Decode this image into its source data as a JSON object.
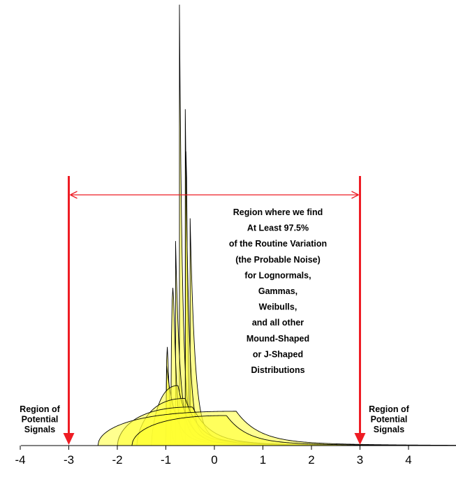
{
  "chart_data": {
    "type": "area",
    "title": "",
    "xlabel": "",
    "ylabel": "",
    "xlim": [
      -4,
      5
    ],
    "ylim": [
      0,
      1
    ],
    "x_ticks": [
      "-4",
      "-3",
      "-2",
      "-1",
      "0",
      "1",
      "2",
      "3",
      "4"
    ],
    "fill_color": "#ffff33",
    "arrow_color": "#ee1c24",
    "limits": [
      -3,
      3
    ],
    "series": [
      {
        "type": "lognormal",
        "shift": -0.5,
        "peak_x": -0.5,
        "peak_y": 0.5,
        "sigma": 0.1,
        "values": [
          [
            -0.5,
            0
          ],
          [
            -0.5,
            0.5
          ],
          [
            0,
            0.025
          ],
          [
            1,
            0.004
          ],
          [
            2,
            0.001
          ],
          [
            3,
            0
          ]
        ]
      },
      {
        "type": "lognormal",
        "shift": -0.6,
        "peak_x": -0.58,
        "peak_y": 0.72,
        "sigma": 0.08,
        "values": [
          [
            -0.6,
            0
          ],
          [
            -0.58,
            0.72
          ],
          [
            0,
            0.02
          ],
          [
            1,
            0.003
          ],
          [
            3,
            0
          ]
        ]
      },
      {
        "type": "j-shaped",
        "shift": -0.72,
        "peak_x": -0.72,
        "peak_y": 0.97,
        "sigma": 0.06,
        "values": [
          [
            -0.72,
            0.97
          ],
          [
            0,
            0.02
          ],
          [
            1,
            0.003
          ],
          [
            3,
            0
          ]
        ]
      },
      {
        "type": "j-shaped",
        "shift": -0.6,
        "peak_x": -0.6,
        "peak_y": 0.74,
        "sigma": 0.07,
        "values": [
          [
            -0.6,
            0.74
          ],
          [
            0,
            0.02
          ],
          [
            2,
            0.001
          ]
        ]
      },
      {
        "type": "weibull",
        "shift": -0.8,
        "peak_x": -0.8,
        "peak_y": 0.45,
        "sigma": 0.09,
        "values": [
          [
            -0.8,
            0.45
          ],
          [
            0,
            0.03
          ],
          [
            2,
            0.001
          ]
        ]
      },
      {
        "type": "gamma",
        "shift": -0.9,
        "peak_x": -0.85,
        "peak_y": 0.37,
        "sigma": 0.12,
        "values": [
          [
            -0.9,
            0
          ],
          [
            -0.85,
            0.37
          ],
          [
            0,
            0.05
          ],
          [
            2,
            0.001
          ]
        ]
      },
      {
        "type": "weibull",
        "shift": -1.0,
        "peak_x": -0.97,
        "peak_y": 0.23,
        "sigma": 0.14,
        "values": [
          [
            -1.0,
            0
          ],
          [
            -0.97,
            0.23
          ],
          [
            0,
            0.06
          ],
          [
            2,
            0.002
          ]
        ]
      },
      {
        "type": "j-shaped",
        "shift": -1.0,
        "peak_x": -0.99,
        "peak_y": 0.18,
        "sigma": 0.18,
        "values": [
          [
            -1.0,
            0.18
          ],
          [
            0,
            0.06
          ],
          [
            2,
            0.003
          ]
        ]
      },
      {
        "type": "gamma",
        "shift": -1.3,
        "peak_x": -0.75,
        "peak_y": 0.14,
        "sigma": 0.22,
        "values": [
          [
            -1.3,
            0
          ],
          [
            -0.75,
            0.14
          ],
          [
            0,
            0.07
          ],
          [
            2,
            0.004
          ]
        ]
      },
      {
        "type": "lognormal",
        "shift": -1.6,
        "peak_x": -0.6,
        "peak_y": 0.11,
        "sigma": 0.28,
        "values": [
          [
            -1.6,
            0
          ],
          [
            -0.6,
            0.11
          ],
          [
            0,
            0.08
          ],
          [
            2,
            0.005
          ]
        ]
      },
      {
        "type": "gamma",
        "shift": -2.0,
        "peak_x": -0.45,
        "peak_y": 0.09,
        "sigma": 0.35,
        "values": [
          [
            -2.0,
            0
          ],
          [
            -0.45,
            0.09
          ],
          [
            1,
            0.03
          ],
          [
            3,
            0.002
          ]
        ]
      },
      {
        "type": "weibull",
        "shift": -2.4,
        "peak_x": 0.45,
        "peak_y": 0.08,
        "sigma": 0.45,
        "values": [
          [
            -2.4,
            0
          ],
          [
            0.45,
            0.08
          ],
          [
            1.5,
            0.04
          ],
          [
            3,
            0.003
          ]
        ]
      },
      {
        "type": "weibull",
        "shift": -1.7,
        "peak_x": 0.25,
        "peak_y": 0.07,
        "sigma": 0.4,
        "values": [
          [
            -1.7,
            0
          ],
          [
            0.25,
            0.07
          ],
          [
            2,
            0.01
          ],
          [
            3,
            0.002
          ]
        ]
      }
    ]
  },
  "annotation": {
    "lines": [
      "Region where we find",
      "At Least 97.5%",
      "of the Routine Variation",
      "(the Probable Noise)",
      "for Lognormals,",
      "Gammas,",
      "Weibulls,",
      "and all other",
      "Mound-Shaped",
      "or J-Shaped",
      "Distributions"
    ]
  },
  "left_region": {
    "lines": [
      "Region of",
      "Potential",
      "Signals"
    ]
  },
  "right_region": {
    "lines": [
      "Region of",
      "Potential",
      "Signals"
    ]
  }
}
